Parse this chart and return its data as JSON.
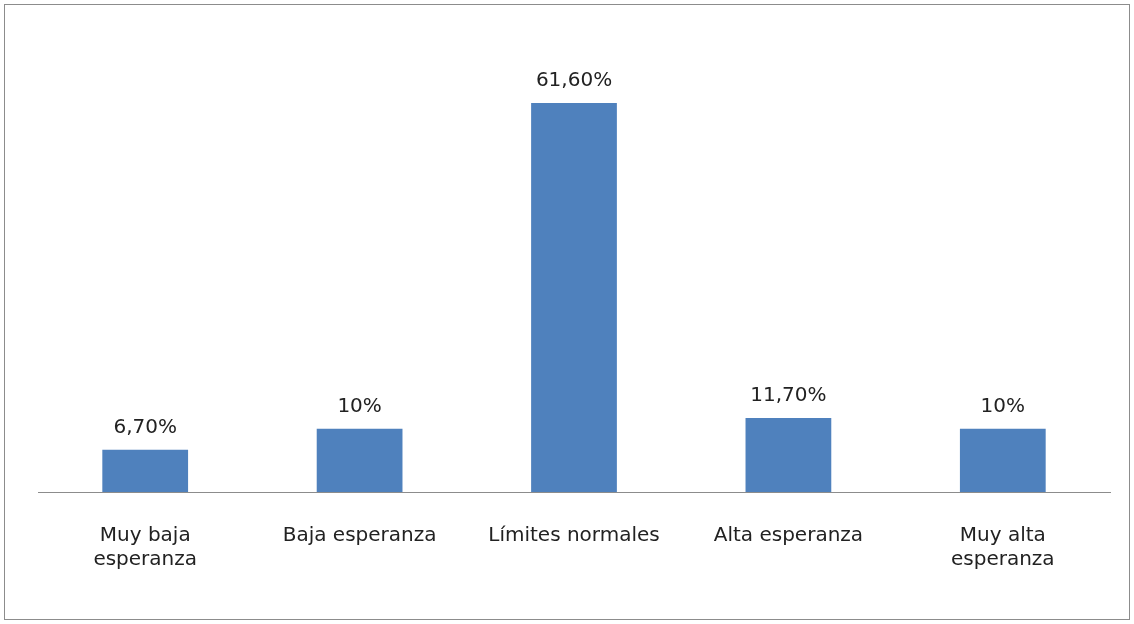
{
  "chart_data": {
    "type": "bar",
    "categories": [
      "Muy baja esperanza",
      "Baja esperanza",
      "Límites normales",
      "Alta esperanza",
      "Muy alta esperanza"
    ],
    "values": [
      6.7,
      10,
      61.6,
      11.7,
      10
    ],
    "value_labels": [
      "6,70%",
      "10%",
      "61,60%",
      "11,70%",
      "10%"
    ],
    "color": "#4f81bd",
    "grid": false,
    "legend": false
  }
}
